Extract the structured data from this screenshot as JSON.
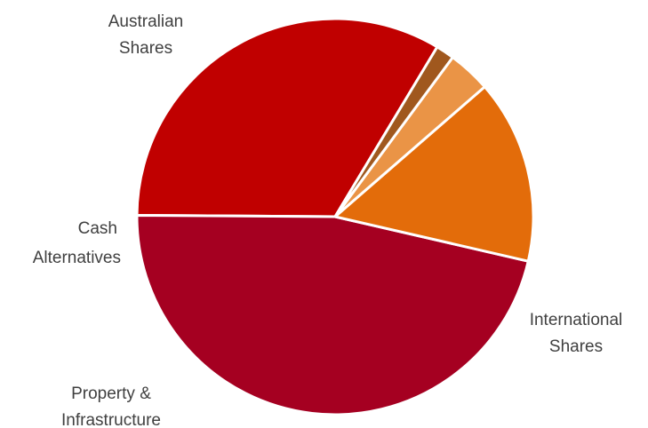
{
  "chart_data": {
    "type": "pie",
    "title": "",
    "slices": [
      {
        "label": [
          "Australian",
          "Shares"
        ],
        "value": 33.5,
        "color": "#c00000"
      },
      {
        "label": [
          "International",
          "Shares"
        ],
        "value": 46.5,
        "color": "#a50021"
      },
      {
        "label": [
          "Property &",
          "Infrastructure"
        ],
        "value": 15.0,
        "color": "#e36c0a"
      },
      {
        "label": [
          "Alternatives"
        ],
        "value": 3.5,
        "color": "#ea9446"
      },
      {
        "label": [
          "Cash"
        ],
        "value": 1.5,
        "color": "#a0581e"
      }
    ],
    "legend": "none",
    "data_labels": "category names outside slices"
  }
}
